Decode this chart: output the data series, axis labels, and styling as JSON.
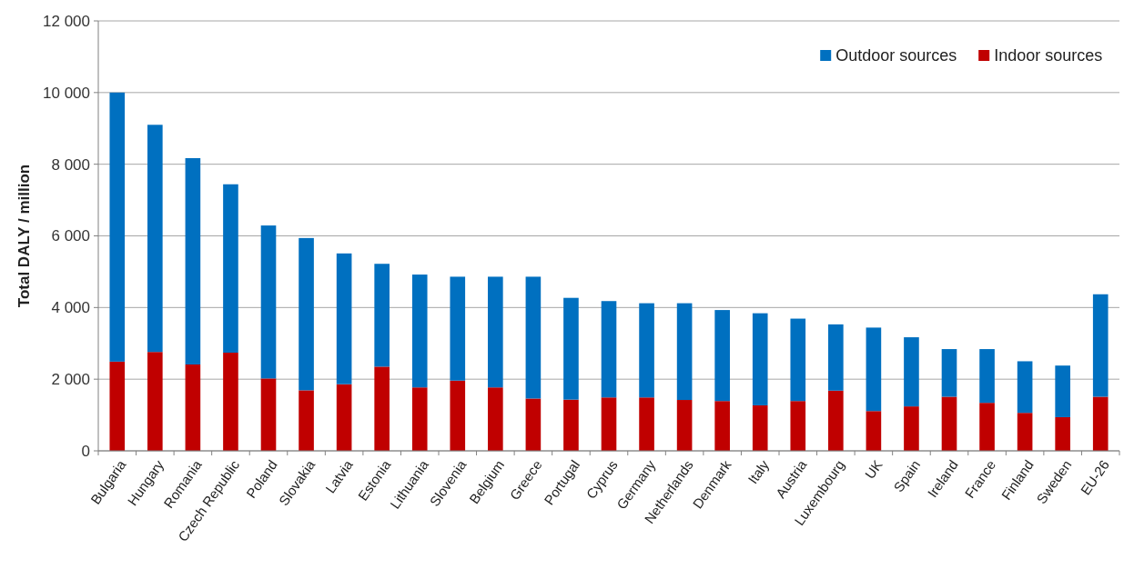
{
  "chart_data": {
    "type": "bar",
    "stacked": true,
    "ylabel": "Total DALY / million",
    "categories": [
      "Bulgaria",
      "Hungary",
      "Romania",
      "Czech Republic",
      "Poland",
      "Slovakia",
      "Latvia",
      "Estonia",
      "Lithuania",
      "Slovenia",
      "Belgium",
      "Greece",
      "Portugal",
      "Cyprus",
      "Germany",
      "Netherlands",
      "Denmark",
      "Italy",
      "Austria",
      "Luxembourg",
      "UK",
      "Spain",
      "Ireland",
      "France",
      "Finland",
      "Sweden",
      "EU-26"
    ],
    "series": [
      {
        "name": "Indoor sources",
        "color": "#c00000",
        "values": [
          2490,
          2760,
          2410,
          2740,
          2020,
          1690,
          1860,
          2350,
          1770,
          1960,
          1770,
          1460,
          1430,
          1490,
          1490,
          1420,
          1390,
          1270,
          1390,
          1680,
          1110,
          1240,
          1510,
          1340,
          1060,
          940,
          1510
        ]
      },
      {
        "name": "Outdoor sources",
        "color": "#0070c0",
        "values": [
          7510,
          6340,
          5760,
          4700,
          4270,
          4250,
          3650,
          2870,
          3150,
          2900,
          3090,
          3400,
          2840,
          2690,
          2630,
          2700,
          2540,
          2570,
          2300,
          1850,
          2330,
          1930,
          1330,
          1500,
          1440,
          1440,
          2860
        ]
      }
    ],
    "ylim": [
      0,
      12000
    ],
    "yticks": [
      0,
      {
        "value": 2000,
        "label": "2 000"
      },
      {
        "value": 4000,
        "label": "4 000"
      },
      {
        "value": 6000,
        "label": "6 000"
      },
      {
        "value": 8000,
        "label": "8 000"
      },
      {
        "value": 10000,
        "label": "10 000"
      },
      {
        "value": 12000,
        "label": "12 000"
      }
    ],
    "grid": "y",
    "legend": "top right"
  }
}
